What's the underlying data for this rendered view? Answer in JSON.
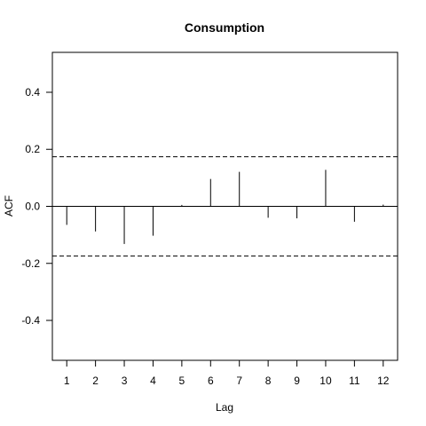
{
  "chart_data": {
    "type": "bar",
    "subtype": "acf-spikes",
    "title": "Consumption",
    "xlabel": "Lag",
    "ylabel": "ACF",
    "x": [
      1,
      2,
      3,
      4,
      5,
      6,
      7,
      8,
      9,
      10,
      11,
      12
    ],
    "x_tick_labels": [
      "1",
      "2",
      "3",
      "4",
      "5",
      "6",
      "7",
      "8",
      "9",
      "10",
      "11",
      "12"
    ],
    "values": [
      -0.065,
      -0.088,
      -0.132,
      -0.103,
      0.005,
      0.096,
      0.121,
      -0.04,
      -0.042,
      0.128,
      -0.054,
      0.006
    ],
    "y_ticks": [
      -0.4,
      -0.2,
      0.0,
      0.2,
      0.4
    ],
    "y_tick_labels": [
      "-0.4",
      "-0.2",
      "0.0",
      "0.2",
      "0.4"
    ],
    "xlim": [
      0.5,
      12.5
    ],
    "ylim": [
      -0.54,
      0.54
    ],
    "confidence_bounds": [
      0.174,
      -0.174
    ],
    "zero_line": true,
    "grid": false,
    "colors": {
      "spike": "#000000",
      "bound": "#000000",
      "axes": "#000000",
      "background": "#ffffff"
    }
  }
}
